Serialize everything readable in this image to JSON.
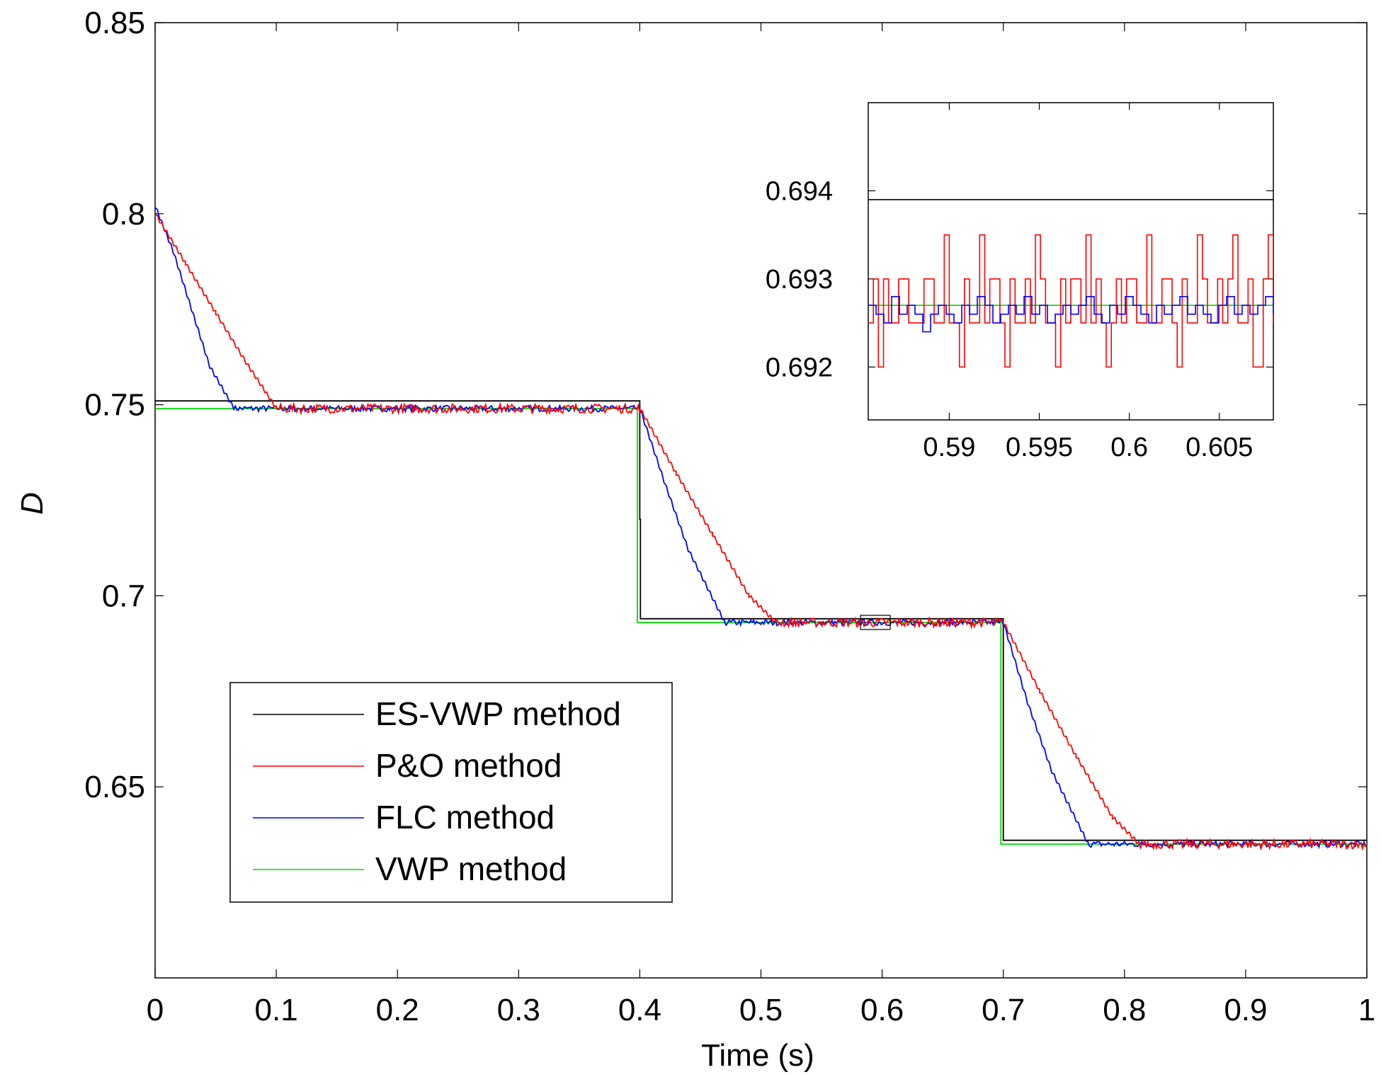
{
  "chart_data": [
    {
      "type": "line",
      "role": "main",
      "xlabel": "Time (s)",
      "ylabel": "D",
      "xlim": [
        0,
        1
      ],
      "ylim": [
        0.6,
        0.85
      ],
      "xticks": [
        0,
        0.1,
        0.2,
        0.3,
        0.4,
        0.5,
        0.6,
        0.7,
        0.8,
        0.9,
        1
      ],
      "xtick_labels": [
        "0",
        "0.1",
        "0.2",
        "0.3",
        "0.4",
        "0.5",
        "0.6",
        "0.7",
        "0.8",
        "0.9",
        "1"
      ],
      "yticks": [
        0.65,
        0.7,
        0.75,
        0.8,
        0.85
      ],
      "ytick_labels": [
        "0.65",
        "0.7",
        "0.75",
        "0.8",
        "0.85"
      ],
      "legend_position": "bottom-left",
      "series": [
        {
          "name": "ES-VWP method",
          "color": "#000000",
          "points": [
            [
              0,
              0.751
            ],
            [
              0.4,
              0.751
            ],
            [
              0.4,
              0.72
            ],
            [
              0.4005,
              0.72
            ],
            [
              0.4005,
              0.694
            ],
            [
              0.7,
              0.694
            ],
            [
              0.7,
              0.636
            ],
            [
              1,
              0.636
            ]
          ]
        },
        {
          "name": "P&O method",
          "color": "#ff0000",
          "points": [
            [
              0,
              0.8
            ],
            [
              0.025,
              0.787
            ],
            [
              0.05,
              0.774
            ],
            [
              0.075,
              0.761
            ],
            [
              0.1,
              0.749
            ],
            [
              0.4,
              0.749
            ],
            [
              0.43,
              0.732
            ],
            [
              0.46,
              0.716
            ],
            [
              0.49,
              0.7
            ],
            [
              0.512,
              0.693
            ],
            [
              0.7,
              0.693
            ],
            [
              0.73,
              0.675
            ],
            [
              0.76,
              0.658
            ],
            [
              0.79,
              0.642
            ],
            [
              0.812,
              0.635
            ],
            [
              1,
              0.635
            ]
          ],
          "noise": 0.0012
        },
        {
          "name": "FLC method",
          "color": "#0000ff",
          "points": [
            [
              0,
              0.802
            ],
            [
              0.015,
              0.79
            ],
            [
              0.03,
              0.775
            ],
            [
              0.045,
              0.76
            ],
            [
              0.065,
              0.749
            ],
            [
              0.4,
              0.749
            ],
            [
              0.42,
              0.73
            ],
            [
              0.44,
              0.712
            ],
            [
              0.47,
              0.693
            ],
            [
              0.7,
              0.693
            ],
            [
              0.72,
              0.672
            ],
            [
              0.74,
              0.654
            ],
            [
              0.77,
              0.635
            ],
            [
              1,
              0.635
            ]
          ],
          "noise": 0.0008
        },
        {
          "name": "VWP method",
          "color": "#00dd00",
          "points": [
            [
              0,
              0.749
            ],
            [
              0.398,
              0.749
            ],
            [
              0.398,
              0.693
            ],
            [
              0.698,
              0.693
            ],
            [
              0.698,
              0.635
            ],
            [
              1,
              0.635
            ]
          ]
        }
      ]
    },
    {
      "type": "line",
      "role": "inset",
      "xlim": [
        0.5855,
        0.608
      ],
      "ylim": [
        0.6914,
        0.695
      ],
      "xticks": [
        0.59,
        0.595,
        0.6,
        0.605
      ],
      "xtick_labels": [
        "0.59",
        "0.595",
        "0.6",
        "0.605"
      ],
      "yticks": [
        0.692,
        0.693,
        0.694
      ],
      "ytick_labels": [
        "0.692",
        "0.693",
        "0.694"
      ],
      "series": [
        {
          "name": "ES-VWP method",
          "color": "#000000",
          "values": [
            0.6939,
            0.6939
          ]
        },
        {
          "name": "P&O method",
          "color": "#ff0000",
          "values": [
            0.6925,
            0.693,
            0.692,
            0.693,
            0.6925,
            0.6925,
            0.693,
            0.693,
            0.6925,
            0.6925,
            0.6925,
            0.693,
            0.693,
            0.6925,
            0.6925,
            0.6935,
            0.6925,
            0.6925,
            0.692,
            0.693,
            0.6925,
            0.6925,
            0.6935,
            0.6925,
            0.693,
            0.693,
            0.6925,
            0.692,
            0.693,
            0.6925,
            0.6925,
            0.693,
            0.6925,
            0.6935,
            0.693,
            0.6925,
            0.6925,
            0.692,
            0.693,
            0.6925,
            0.693,
            0.693,
            0.6925,
            0.6935,
            0.6925,
            0.693,
            0.6925,
            0.692,
            0.6925,
            0.693,
            0.6925,
            0.693,
            0.693,
            0.6925,
            0.6925,
            0.6935,
            0.6925,
            0.6925,
            0.693,
            0.693,
            0.6925,
            0.692,
            0.693,
            0.6925,
            0.6925,
            0.6935,
            0.693,
            0.6925,
            0.6925,
            0.693,
            0.6925,
            0.693,
            0.6935,
            0.6925,
            0.6925,
            0.693,
            0.692,
            0.692,
            0.693,
            0.6935,
            0.6925
          ]
        },
        {
          "name": "FLC method",
          "color": "#0000ff",
          "values": [
            0.6927,
            0.6926,
            0.6925,
            0.6928,
            0.6926,
            0.6927,
            0.6926,
            0.6924,
            0.6926,
            0.6927,
            0.6926,
            0.6925,
            0.6927,
            0.6926,
            0.6928,
            0.6927,
            0.6925,
            0.6926,
            0.6927,
            0.6926,
            0.6928,
            0.6926,
            0.6927,
            0.6925,
            0.6926,
            0.6927,
            0.6926,
            0.6927,
            0.6928,
            0.6926,
            0.6925,
            0.6927,
            0.6926,
            0.6928,
            0.6927,
            0.6926,
            0.6925,
            0.6927,
            0.6926,
            0.6927,
            0.6928,
            0.6926,
            0.6927,
            0.6926,
            0.6925,
            0.6927,
            0.6928,
            0.6926,
            0.6927,
            0.6926,
            0.6927,
            0.6928,
            0.6926
          ]
        },
        {
          "name": "VWP method",
          "color": "#00dd00",
          "values": [
            0.6927,
            0.6927
          ]
        }
      ]
    }
  ]
}
